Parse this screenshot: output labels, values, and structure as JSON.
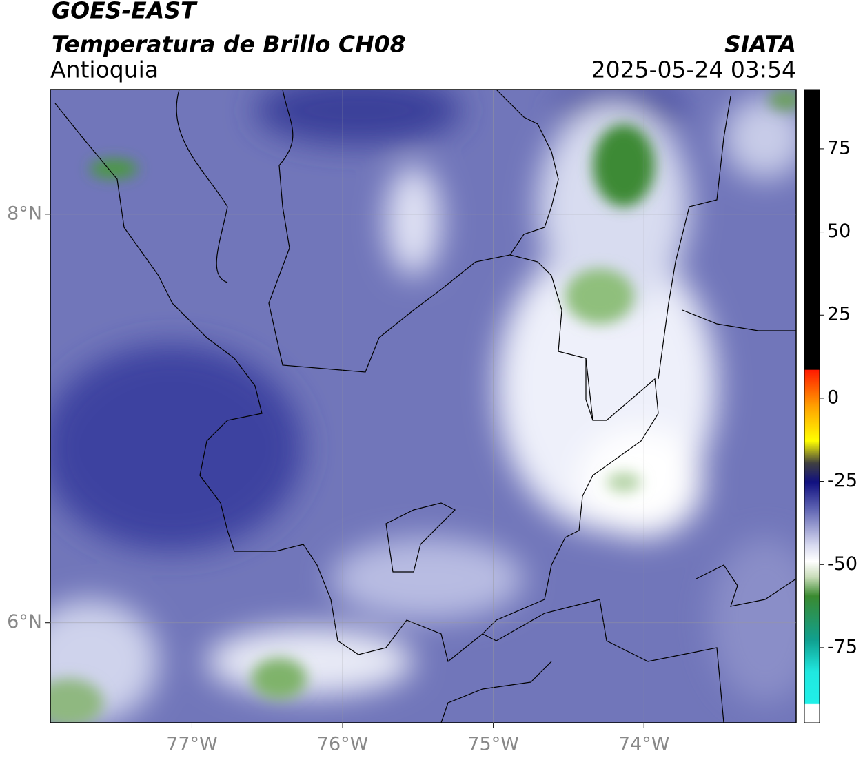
{
  "header": {
    "title": "GOES-EAST",
    "subtitle": "Temperatura de Brillo CH08",
    "region": "Antioquia",
    "source": "SIATA",
    "timestamp": "2025-05-24 03:54"
  },
  "map": {
    "lon_range": [
      -77.94,
      -72.99
    ],
    "lat_range": [
      5.51,
      8.61
    ],
    "lon_ticks": [
      {
        "value": -77,
        "label": "77°W"
      },
      {
        "value": -76,
        "label": "76°W"
      },
      {
        "value": -75,
        "label": "75°W"
      },
      {
        "value": -74,
        "label": "74°W"
      }
    ],
    "lat_ticks": [
      {
        "value": 8,
        "label": "8°N"
      },
      {
        "value": 6,
        "label": "6°N"
      }
    ]
  },
  "colorbar": {
    "range": [
      -97.6,
      92.8
    ],
    "ticks": [
      75,
      50,
      25,
      0,
      -25,
      -50,
      -75
    ]
  }
}
